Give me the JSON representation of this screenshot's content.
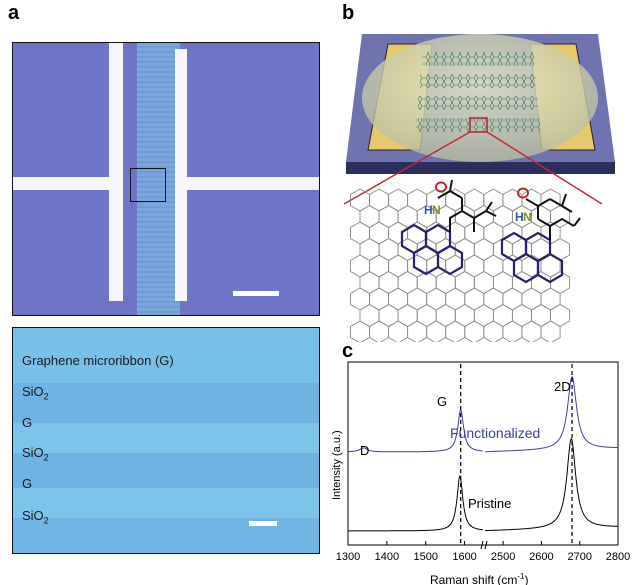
{
  "panel_letters": {
    "a": "a",
    "b": "b",
    "c": "c"
  },
  "zoom_labels": {
    "graphene": "Graphene microribbon (G)",
    "sio2_prefix": "SiO",
    "sio2_sub": "2",
    "g": "G"
  },
  "schematic": {
    "molecule_labels": {
      "h": "H",
      "n": "N"
    }
  },
  "chart_data": {
    "type": "line",
    "xlabel": "Raman shift (cm",
    "xlabel_sup": "-1",
    "xlabel_close": ")",
    "ylabel": "Intensity (a.u.)",
    "x_ticks_left": [
      1300,
      1400,
      1500,
      1600
    ],
    "x_ticks_right": [
      2500,
      2600,
      2700,
      2800
    ],
    "x_break": [
      1650,
      2450
    ],
    "peaks": {
      "D": "D",
      "G": "G",
      "2D": "2D"
    },
    "peak_positions": {
      "G": 1590,
      "2D": 2680
    },
    "series": [
      {
        "name": "Functionalized",
        "color": "#3b3fa3",
        "D_peak": 1340,
        "G_peak": 1590,
        "2D_peak": 2680
      },
      {
        "name": "Pristine",
        "color": "#000000",
        "G_peak": 1588,
        "2D_peak": 2678
      }
    ],
    "colors": {
      "functionalized": "#3b3fa3",
      "pristine": "#000000",
      "dashed": "#000000"
    }
  }
}
